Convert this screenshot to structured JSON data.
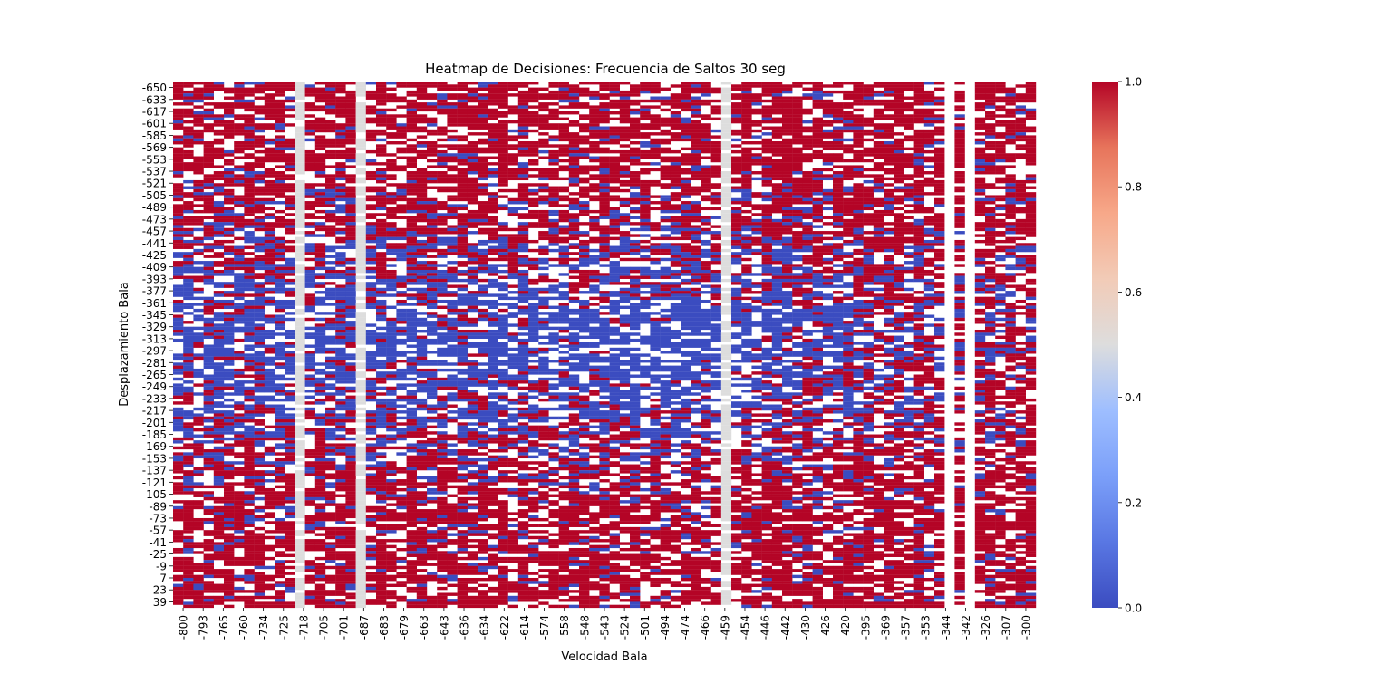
{
  "chart_data": {
    "type": "heatmap",
    "title": "Heatmap de Decisiones: Frecuencia de Saltos 30 seg",
    "xlabel": "Velocidad Bala",
    "ylabel": "Desplazamiento Bala",
    "x_tick_labels": [
      "-800",
      "-793",
      "-765",
      "-760",
      "-734",
      "-725",
      "-718",
      "-705",
      "-701",
      "-687",
      "-683",
      "-679",
      "-663",
      "-643",
      "-636",
      "-634",
      "-622",
      "-614",
      "-574",
      "-558",
      "-548",
      "-543",
      "-524",
      "-501",
      "-494",
      "-474",
      "-466",
      "-459",
      "-454",
      "-446",
      "-442",
      "-430",
      "-426",
      "-420",
      "-395",
      "-369",
      "-357",
      "-353",
      "-344",
      "-342",
      "-326",
      "-307",
      "-300"
    ],
    "y_tick_labels": [
      "-650",
      "-633",
      "-617",
      "-601",
      "-585",
      "-569",
      "-553",
      "-537",
      "-521",
      "-505",
      "-489",
      "-473",
      "-457",
      "-441",
      "-425",
      "-409",
      "-393",
      "-377",
      "-361",
      "-345",
      "-329",
      "-313",
      "-297",
      "-281",
      "-265",
      "-249",
      "-233",
      "-217",
      "-201",
      "-185",
      "-169",
      "-153",
      "-137",
      "-121",
      "-105",
      "-89",
      "-73",
      "-57",
      "-41",
      "-25",
      "-9",
      "7",
      "23",
      "39"
    ],
    "colorbar": {
      "min": 0.0,
      "max": 1.0,
      "tick_labels": [
        "0.0",
        "0.2",
        "0.4",
        "0.6",
        "0.8",
        "1.0"
      ],
      "colormap": "coolwarm",
      "color_low": "#3b4cc0",
      "color_mid": "#dddddd",
      "color_high": "#b40426"
    },
    "value_summary": {
      "row_count": 176,
      "column_count": 85,
      "values": "binary 0/1 decisions with missing (blank) cells; mostly 1.0 (red) near top, bottom and right columns, mostly 0.0 (blue) in middle rows around -409 to -201",
      "blank_columns_x": [
        "-344",
        "-342"
      ],
      "constant_0_5_columns_x": [
        "-718",
        "-687",
        "-459"
      ]
    }
  }
}
